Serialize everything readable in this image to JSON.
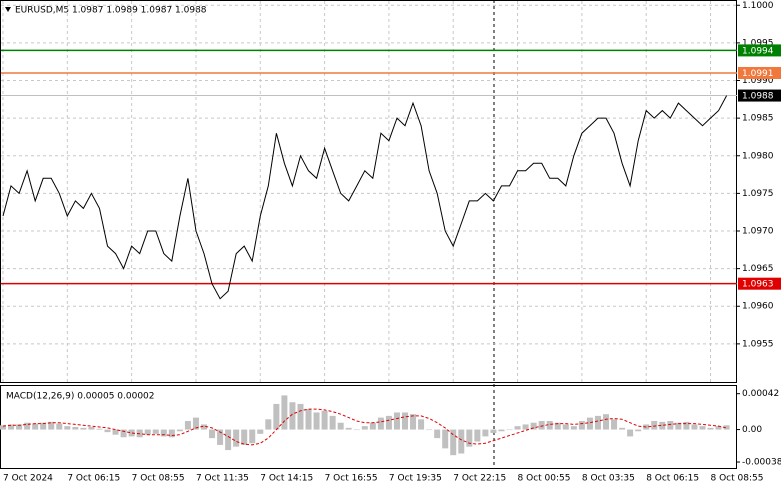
{
  "chart_data": [
    {
      "type": "line",
      "title": "EURUSD,M5  1.0987 1.0989 1.0987 1.0988",
      "color": "#000000",
      "categories": [
        "7 Oct 2024",
        null,
        null,
        null,
        null,
        null,
        null,
        null,
        "7 Oct 06:15",
        null,
        null,
        null,
        null,
        null,
        null,
        null,
        "7 Oct 08:55",
        null,
        null,
        null,
        null,
        null,
        null,
        null,
        "7 Oct 11:35",
        null,
        null,
        null,
        null,
        null,
        null,
        null,
        "7 Oct 14:15",
        null,
        null,
        null,
        null,
        null,
        null,
        null,
        "7 Oct 16:55",
        null,
        null,
        null,
        null,
        null,
        null,
        null,
        "7 Oct 19:35",
        null,
        null,
        null,
        null,
        null,
        null,
        null,
        "7 Oct 22:15",
        null,
        null,
        null,
        null,
        null,
        null,
        null,
        "8 Oct 00:55",
        null,
        null,
        null,
        null,
        null,
        null,
        null,
        "8 Oct 03:35",
        null,
        null,
        null,
        null,
        null,
        null,
        null,
        "8 Oct 06:15",
        null,
        null,
        null,
        null,
        null,
        null,
        null,
        "8 Oct 08:55",
        null,
        null
      ],
      "values": [
        1.0972,
        1.0976,
        1.0975,
        1.0978,
        1.0974,
        1.0977,
        1.0977,
        1.0975,
        1.0972,
        1.0974,
        1.0973,
        1.0975,
        1.0973,
        1.0968,
        1.0967,
        1.0965,
        1.0968,
        1.0967,
        1.097,
        1.097,
        1.0967,
        1.0966,
        1.0972,
        1.0977,
        1.097,
        1.0967,
        1.0963,
        1.0961,
        1.0962,
        1.0967,
        1.0968,
        1.0966,
        1.0972,
        1.0976,
        1.0983,
        1.0979,
        1.0976,
        1.098,
        1.0978,
        1.0977,
        1.0981,
        1.0978,
        1.0975,
        1.0974,
        1.0976,
        1.0978,
        1.0977,
        1.0983,
        1.0982,
        1.0985,
        1.0984,
        1.0987,
        1.0984,
        1.0978,
        1.0975,
        1.097,
        1.0968,
        1.0971,
        1.0974,
        1.0974,
        1.0975,
        1.0974,
        1.0976,
        1.0976,
        1.0978,
        1.0978,
        1.0979,
        1.0979,
        1.0977,
        1.0977,
        1.0976,
        1.098,
        1.0983,
        1.0984,
        1.0985,
        1.0985,
        1.0983,
        1.0979,
        1.0976,
        1.0982,
        1.0986,
        1.0985,
        1.0986,
        1.0985,
        1.0987,
        1.0986,
        1.0985,
        1.0984,
        1.0985,
        1.0986,
        1.0988
      ],
      "ylim": [
        1.09498,
        1.10007
      ],
      "yticks": [
        {
          "value": 1.1,
          "label": "1.1000"
        },
        1.0995,
        {
          "value": 1.099,
          "label": "1.0990"
        },
        1.0985,
        {
          "value": 1.098,
          "label": "1.0980"
        },
        1.0975,
        {
          "value": 1.097,
          "label": "1.0970"
        },
        1.0965,
        {
          "value": 1.096,
          "label": "1.0960"
        },
        1.0955
      ],
      "levels": [
        {
          "value": 1.0994,
          "color": "#008000"
        },
        {
          "value": 1.0991,
          "color": "#f0783c"
        },
        {
          "value": 1.0988,
          "color": "#000000",
          "line_color": "#c0c0c0"
        },
        {
          "value": 1.0963,
          "color": "#e00000"
        }
      ],
      "grid": true
    },
    {
      "type": "macd",
      "title": "MACD(12,26,9) 0.00005 0.00002",
      "color": "#c0c0c0",
      "signal_color": "#e00000",
      "values": [
        5e-05,
        6e-05,
        6e-05,
        8e-05,
        7e-05,
        8e-05,
        9e-05,
        7e-05,
        4e-05,
        3e-05,
        2e-05,
        3e-05,
        1e-05,
        -3e-05,
        -6e-05,
        -9e-05,
        -8e-05,
        -9e-05,
        -6e-05,
        -5e-05,
        -8e-05,
        -9e-05,
        -2e-05,
        0.0001,
        0.00014,
        6e-05,
        -0.0001,
        -0.00018,
        -0.00024,
        -0.0002,
        -0.00018,
        -0.00016,
        -5e-05,
        0.00012,
        0.0003,
        0.0004,
        0.00032,
        0.0003,
        0.00024,
        0.0002,
        0.00022,
        0.00016,
        8e-05,
        2e-05,
        0,
        4e-05,
        8e-05,
        0.00014,
        0.00016,
        0.0002,
        0.0002,
        0.00018,
        0.00012,
        0,
        -0.0001,
        -0.00022,
        -0.0003,
        -0.00028,
        -0.0002,
        -0.00014,
        -8e-05,
        -4e-05,
        -2e-05,
        0,
        4e-05,
        6e-05,
        8e-05,
        0.0001,
        0.0001,
        8e-05,
        6e-05,
        4e-05,
        0.0001,
        0.00014,
        0.00016,
        0.00018,
        0.00012,
        2e-05,
        -8e-05,
        -2e-05,
        6e-05,
        0.0001,
        9e-05,
        0.0001,
        8e-05,
        9e-05,
        6e-05,
        4e-05,
        2e-05,
        4e-05,
        5e-05
      ],
      "signal": [
        4e-05,
        5e-05,
        5e-05,
        6e-05,
        7e-05,
        7e-05,
        8e-05,
        8e-05,
        7e-05,
        6e-05,
        5e-05,
        4e-05,
        3e-05,
        2e-05,
        0,
        -2e-05,
        -4e-05,
        -5e-05,
        -6e-05,
        -6e-05,
        -6e-05,
        -7e-05,
        -6e-05,
        -2e-05,
        2e-05,
        4e-05,
        2e-05,
        -3e-05,
        -8e-05,
        -0.00014,
        -0.00017,
        -0.00018,
        -0.00016,
        -0.0001,
        0,
        0.0001,
        0.00018,
        0.00022,
        0.00024,
        0.00024,
        0.00023,
        0.00021,
        0.00018,
        0.00014,
        0.0001,
        8e-05,
        8e-05,
        9e-05,
        0.00011,
        0.00013,
        0.00015,
        0.00016,
        0.00016,
        0.00013,
        8e-05,
        2e-05,
        -6e-05,
        -0.00012,
        -0.00016,
        -0.00017,
        -0.00016,
        -0.00013,
        -0.0001,
        -7e-05,
        -4e-05,
        -1e-05,
        2e-05,
        4e-05,
        6e-05,
        7e-05,
        7e-05,
        6e-05,
        7e-05,
        8e-05,
        0.0001,
        0.00012,
        0.00013,
        0.00012,
        8e-05,
        4e-05,
        3e-05,
        4e-05,
        5e-05,
        6e-05,
        7e-05,
        7e-05,
        7e-05,
        6e-05,
        5e-05,
        4e-05,
        2e-05
      ],
      "ylim": [
        -0.00045,
        0.00051
      ],
      "yticks": [
        0.00042,
        {
          "value": 0,
          "label": "0.00"
        },
        -0.00038
      ]
    }
  ]
}
